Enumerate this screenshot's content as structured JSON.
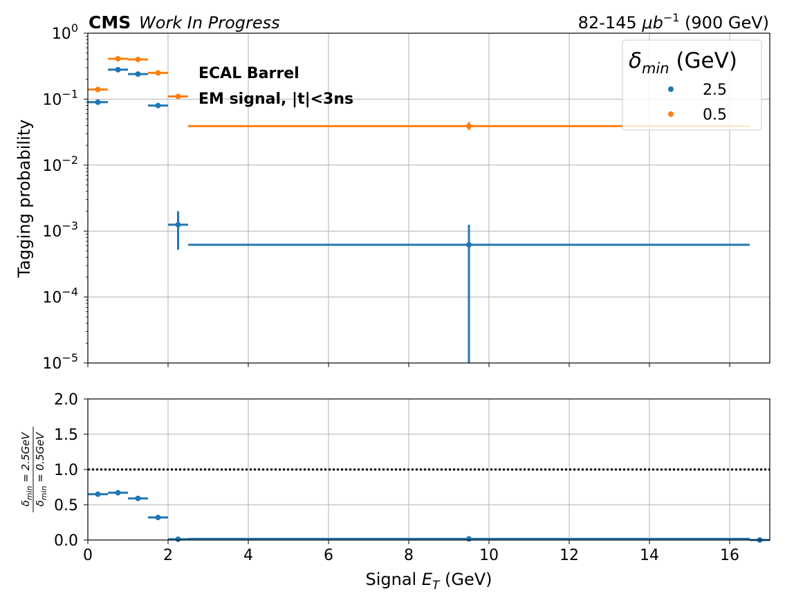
{
  "header": {
    "experiment": "CMS",
    "status": "Work In Progress",
    "lumi_prefix": "82-145 ",
    "lumi_unit": "μb",
    "lumi_exp": "−1",
    "lumi_suffix": " (900 GeV)"
  },
  "annotations": [
    "ECAL Barrel",
    "EM signal, |t|<3ns"
  ],
  "legend": {
    "title_symbol": "δ",
    "title_sub": "min",
    "title_unit": " (GeV)",
    "placement": "top-right"
  },
  "chart_data": [
    {
      "type": "scatter",
      "subtype": "errorbar",
      "xlabel_prefix": "Signal ",
      "xlabel_symbol": "E",
      "xlabel_sub": "T",
      "xlabel_suffix": " (GeV)",
      "ylabel": "Tagging probability",
      "yscale": "log",
      "xlim": [
        0,
        17
      ],
      "ylim": [
        1e-05,
        1
      ],
      "grid": true,
      "y_tick_labels": [
        "10⁻⁵",
        "10⁻⁴",
        "10⁻³",
        "10⁻²",
        "10⁻¹",
        "10⁰"
      ],
      "series": [
        {
          "name": "2.5",
          "color": "#1f77b4",
          "points": [
            {
              "x": 0.25,
              "xlo": 0.0,
              "xhi": 0.5,
              "y": 0.09,
              "ylo": 0.088,
              "yhi": 0.092
            },
            {
              "x": 0.75,
              "xlo": 0.5,
              "xhi": 1.0,
              "y": 0.28,
              "ylo": 0.275,
              "yhi": 0.285
            },
            {
              "x": 1.25,
              "xlo": 1.0,
              "xhi": 1.5,
              "y": 0.24,
              "ylo": 0.235,
              "yhi": 0.245
            },
            {
              "x": 1.75,
              "xlo": 1.5,
              "xhi": 2.0,
              "y": 0.08,
              "ylo": 0.078,
              "yhi": 0.082
            },
            {
              "x": 2.25,
              "xlo": 2.0,
              "xhi": 2.5,
              "y": 0.00125,
              "ylo": 0.00052,
              "yhi": 0.002
            },
            {
              "x": 9.5,
              "xlo": 2.5,
              "xhi": 16.5,
              "y": 0.00062,
              "ylo": 1e-05,
              "yhi": 0.00125
            }
          ]
        },
        {
          "name": "0.5",
          "color": "#ff7f0e",
          "points": [
            {
              "x": 0.25,
              "xlo": 0.0,
              "xhi": 0.5,
              "y": 0.14,
              "ylo": 0.137,
              "yhi": 0.143
            },
            {
              "x": 0.75,
              "xlo": 0.5,
              "xhi": 1.0,
              "y": 0.41,
              "ylo": 0.4,
              "yhi": 0.42
            },
            {
              "x": 1.25,
              "xlo": 1.0,
              "xhi": 1.5,
              "y": 0.4,
              "ylo": 0.39,
              "yhi": 0.41
            },
            {
              "x": 1.75,
              "xlo": 1.5,
              "xhi": 2.0,
              "y": 0.25,
              "ylo": 0.245,
              "yhi": 0.255
            },
            {
              "x": 2.25,
              "xlo": 2.0,
              "xhi": 2.5,
              "y": 0.11,
              "ylo": 0.107,
              "yhi": 0.113
            },
            {
              "x": 9.5,
              "xlo": 2.5,
              "xhi": 16.5,
              "y": 0.039,
              "ylo": 0.034,
              "yhi": 0.045
            }
          ]
        }
      ]
    },
    {
      "type": "scatter",
      "subtype": "errorbar-ratio",
      "ylabel_num": "δ_{min} = 2.5GeV",
      "ylabel_den": "δ_{min} = 0.5GeV",
      "ylim": [
        0,
        2
      ],
      "xlim": [
        0,
        17
      ],
      "grid": true,
      "reference_line": 1.0,
      "x_tick_labels": [
        "0",
        "2",
        "4",
        "6",
        "8",
        "10",
        "12",
        "14",
        "16"
      ],
      "y_tick_labels": [
        "0.0",
        "0.5",
        "1.0",
        "1.5",
        "2.0"
      ],
      "series": [
        {
          "name": "ratio",
          "color": "#1f77b4",
          "points": [
            {
              "x": 0.25,
              "xlo": 0.0,
              "xhi": 0.5,
              "y": 0.65
            },
            {
              "x": 0.75,
              "xlo": 0.5,
              "xhi": 1.0,
              "y": 0.67
            },
            {
              "x": 1.25,
              "xlo": 1.0,
              "xhi": 1.5,
              "y": 0.59
            },
            {
              "x": 1.75,
              "xlo": 1.5,
              "xhi": 2.0,
              "y": 0.32
            },
            {
              "x": 2.25,
              "xlo": 2.0,
              "xhi": 2.5,
              "y": 0.011
            },
            {
              "x": 9.5,
              "xlo": 2.5,
              "xhi": 16.5,
              "y": 0.016
            },
            {
              "x": 16.75,
              "xlo": 16.5,
              "xhi": 17.0,
              "y": 0.0
            }
          ]
        }
      ]
    }
  ]
}
